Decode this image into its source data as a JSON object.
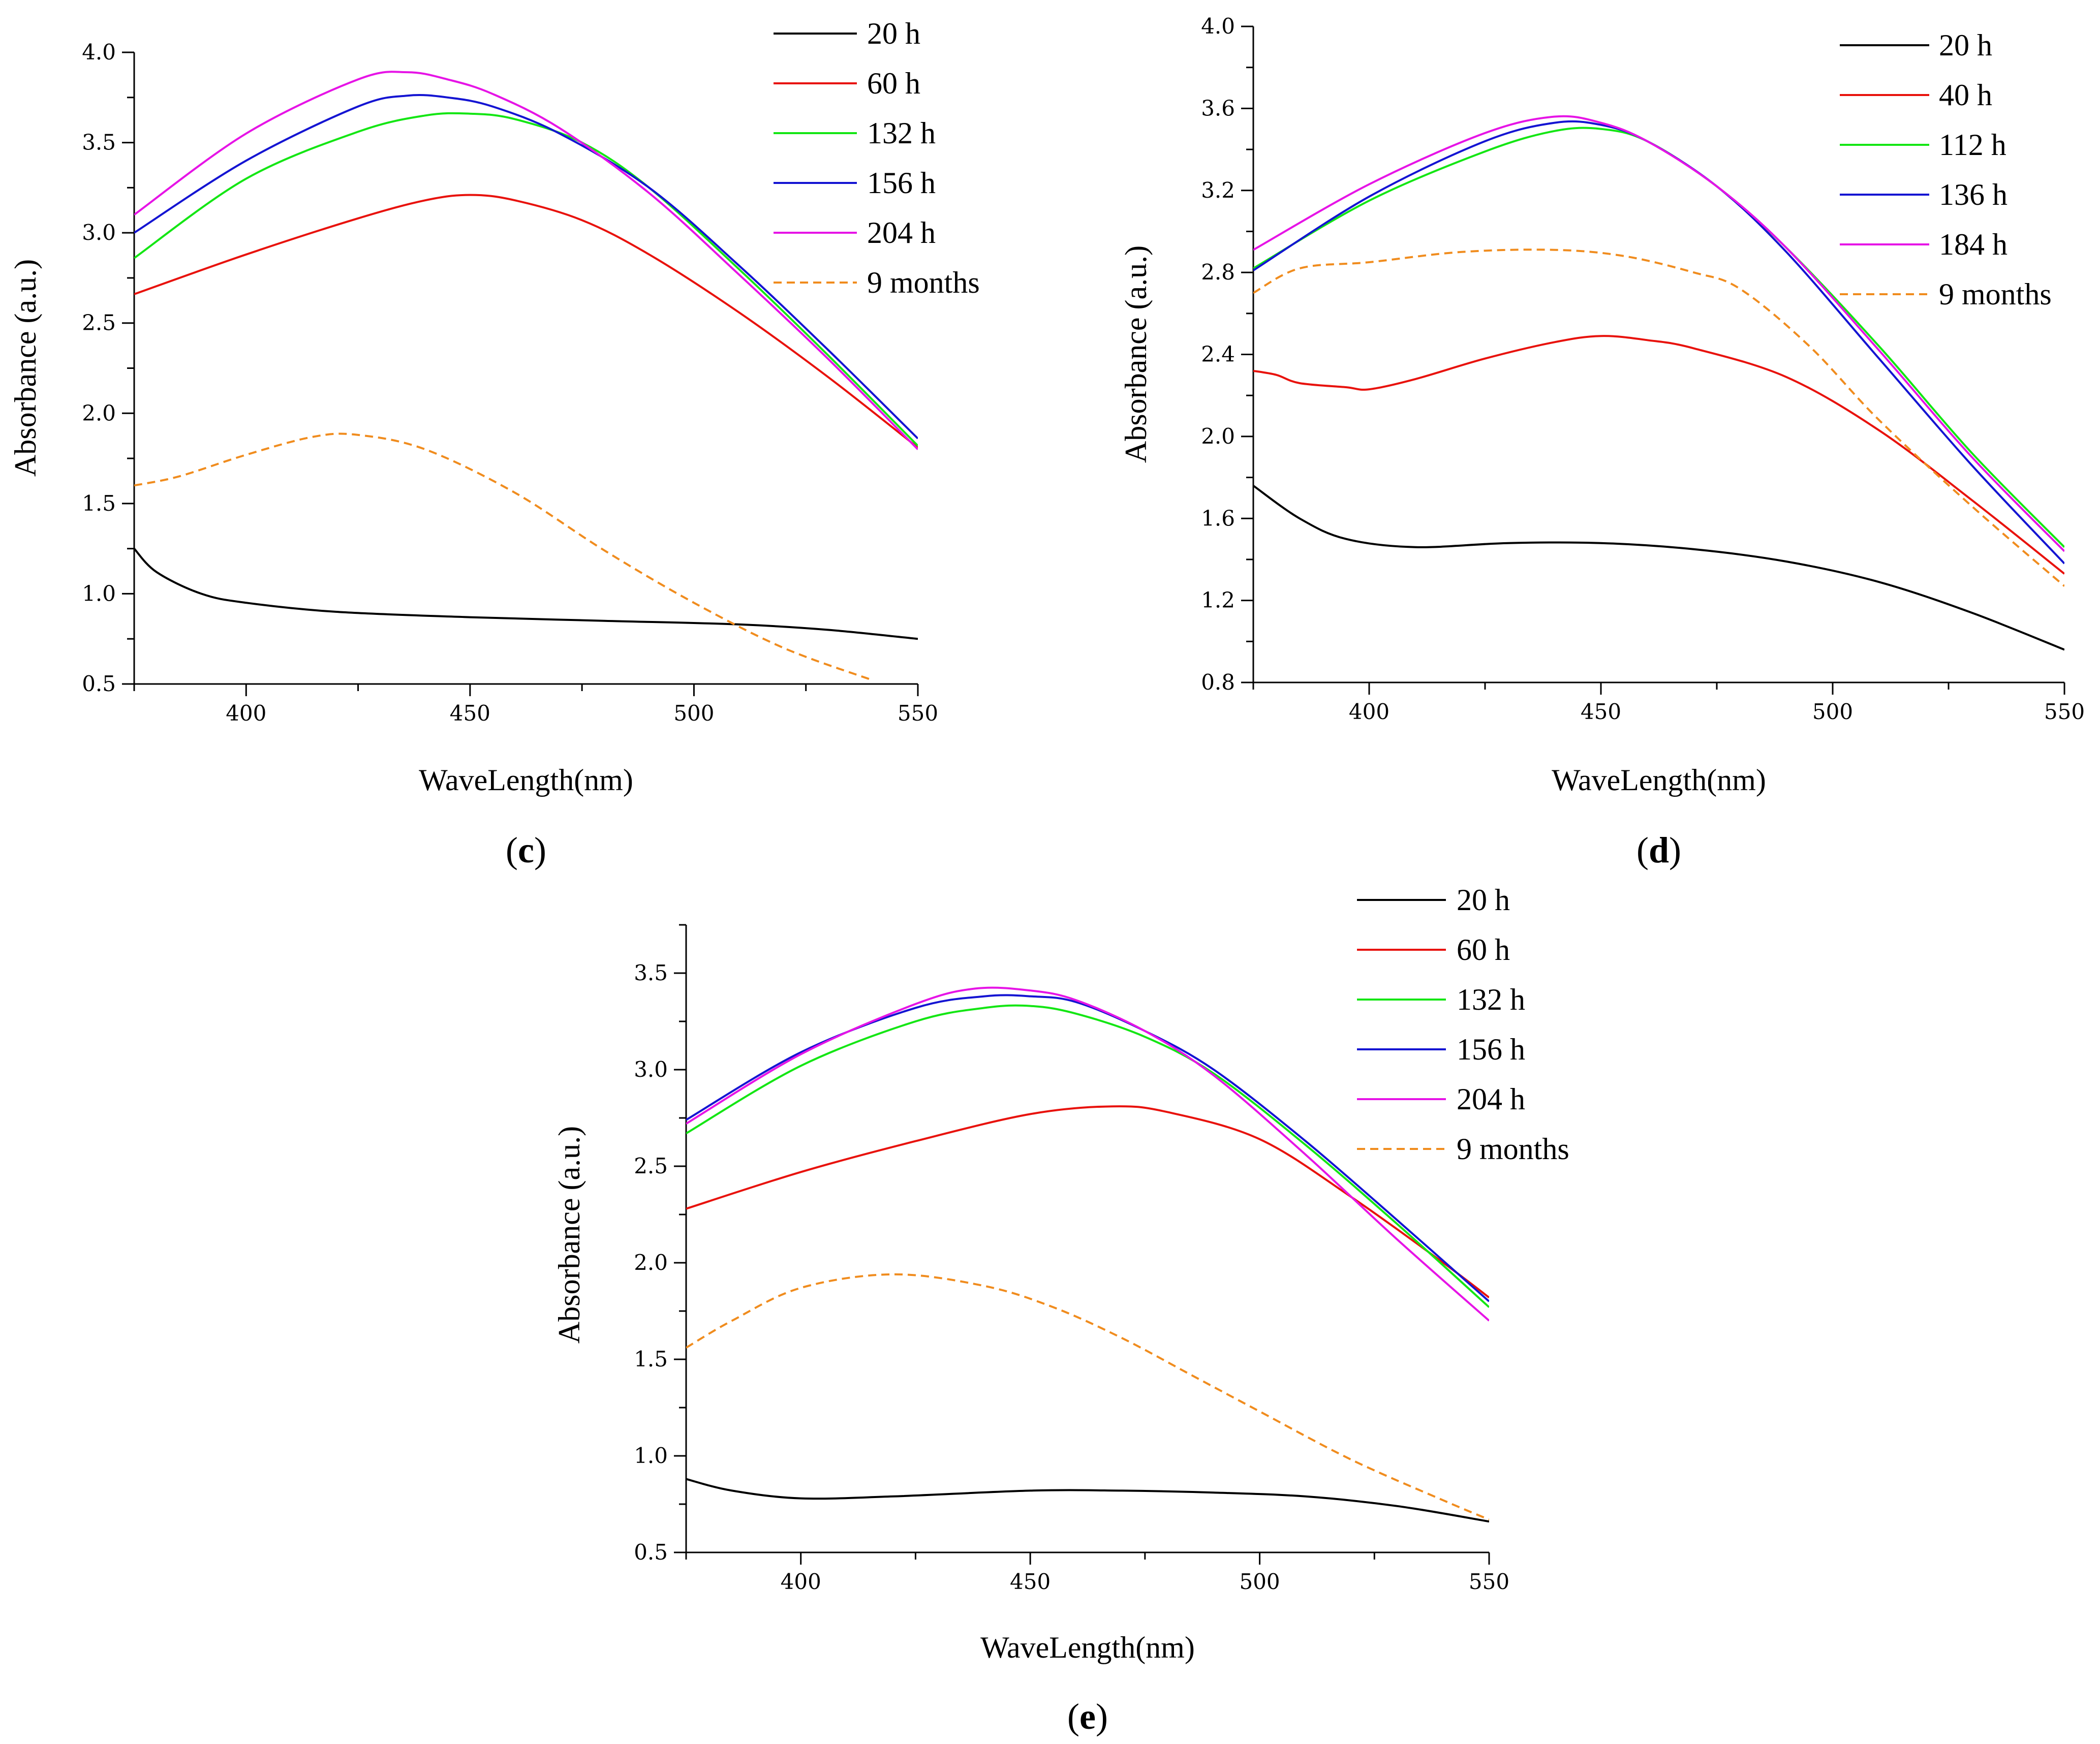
{
  "chart_data": [
    {
      "type": "line",
      "panel": "c",
      "caption_open": "(",
      "caption_letter": "c",
      "caption_close": ")",
      "xlabel": "WaveLength(nm)",
      "ylabel": "Absorbance (a.u.)",
      "xlim": [
        375,
        550
      ],
      "ylim": [
        0.5,
        4.0
      ],
      "xticks": [
        400,
        450,
        500,
        550
      ],
      "yticks": [
        0.5,
        1.0,
        1.5,
        2.0,
        2.5,
        3.0,
        3.5,
        4.0
      ],
      "ytick_labels": [
        "0.5",
        "1.0",
        "1.5",
        "2.0",
        "2.5",
        "3.0",
        "3.5",
        "4.0"
      ],
      "legend_position": "top-right",
      "series": [
        {
          "name": "20 h",
          "color": "#000000",
          "dash": "solid",
          "x": [
            375,
            380,
            390,
            400,
            420,
            450,
            480,
            510,
            530,
            550
          ],
          "y": [
            1.25,
            1.12,
            1.0,
            0.95,
            0.9,
            0.87,
            0.85,
            0.83,
            0.8,
            0.75
          ]
        },
        {
          "name": "60 h",
          "color": "#e8120c",
          "dash": "solid",
          "x": [
            375,
            400,
            425,
            440,
            450,
            460,
            475,
            490,
            510,
            530,
            550
          ],
          "y": [
            2.66,
            2.88,
            3.08,
            3.18,
            3.21,
            3.18,
            3.07,
            2.88,
            2.56,
            2.2,
            1.81
          ]
        },
        {
          "name": "132 h",
          "color": "#14e614",
          "dash": "solid",
          "x": [
            375,
            400,
            425,
            440,
            450,
            460,
            475,
            490,
            510,
            530,
            550
          ],
          "y": [
            2.86,
            3.3,
            3.56,
            3.65,
            3.66,
            3.63,
            3.5,
            3.25,
            2.8,
            2.32,
            1.82
          ]
        },
        {
          "name": "156 h",
          "color": "#1414d2",
          "dash": "solid",
          "x": [
            375,
            400,
            425,
            436,
            445,
            455,
            470,
            490,
            510,
            530,
            550
          ],
          "y": [
            3.0,
            3.4,
            3.7,
            3.76,
            3.75,
            3.7,
            3.55,
            3.25,
            2.82,
            2.35,
            1.86
          ]
        },
        {
          "name": "204 h",
          "color": "#e614e6",
          "dash": "solid",
          "x": [
            375,
            400,
            425,
            436,
            445,
            455,
            470,
            490,
            510,
            530,
            550
          ],
          "y": [
            3.1,
            3.55,
            3.85,
            3.89,
            3.85,
            3.77,
            3.58,
            3.22,
            2.77,
            2.3,
            1.8
          ]
        },
        {
          "name": "9 months",
          "color": "#f08c1e",
          "dash": "dashed",
          "x": [
            375,
            385,
            400,
            415,
            425,
            440,
            460,
            480,
            500,
            520,
            540
          ],
          "y": [
            1.6,
            1.65,
            1.77,
            1.87,
            1.88,
            1.8,
            1.56,
            1.24,
            0.95,
            0.7,
            0.52
          ]
        }
      ]
    },
    {
      "type": "line",
      "panel": "d",
      "caption_open": "(",
      "caption_letter": "d",
      "caption_close": ")",
      "xlabel": "WaveLength(nm)",
      "ylabel": "Absorbance (a.u.)",
      "xlim": [
        375,
        550
      ],
      "ylim": [
        0.8,
        4.0
      ],
      "xticks": [
        400,
        450,
        500,
        550
      ],
      "yticks": [
        0.8,
        1.2,
        1.6,
        2.0,
        2.4,
        2.8,
        3.2,
        3.6,
        4.0
      ],
      "ytick_labels": [
        "0.8",
        "1.2",
        "1.6",
        "2.0",
        "2.4",
        "2.8",
        "3.2",
        "3.6",
        "4.0"
      ],
      "legend_position": "top-right",
      "series": [
        {
          "name": "20 h",
          "color": "#000000",
          "dash": "solid",
          "x": [
            375,
            385,
            395,
            410,
            430,
            450,
            470,
            490,
            510,
            530,
            550
          ],
          "y": [
            1.76,
            1.6,
            1.5,
            1.46,
            1.48,
            1.48,
            1.45,
            1.39,
            1.29,
            1.14,
            0.96
          ]
        },
        {
          "name": "40 h",
          "color": "#e8120c",
          "dash": "solid",
          "x": [
            375,
            380,
            385,
            395,
            400,
            410,
            425,
            440,
            450,
            460,
            470,
            490,
            510,
            530,
            550
          ],
          "y": [
            2.32,
            2.3,
            2.26,
            2.24,
            2.23,
            2.28,
            2.38,
            2.46,
            2.49,
            2.47,
            2.43,
            2.29,
            2.03,
            1.69,
            1.33
          ]
        },
        {
          "name": "112 h",
          "color": "#14e614",
          "dash": "solid",
          "x": [
            375,
            400,
            425,
            440,
            450,
            460,
            475,
            490,
            510,
            530,
            550
          ],
          "y": [
            2.82,
            3.15,
            3.39,
            3.49,
            3.5,
            3.44,
            3.22,
            2.92,
            2.44,
            1.92,
            1.46
          ]
        },
        {
          "name": "136 h",
          "color": "#1414d2",
          "dash": "solid",
          "x": [
            375,
            400,
            425,
            440,
            450,
            460,
            475,
            490,
            510,
            530,
            550
          ],
          "y": [
            2.81,
            3.17,
            3.44,
            3.53,
            3.52,
            3.44,
            3.22,
            2.9,
            2.38,
            1.86,
            1.38
          ]
        },
        {
          "name": "184 h",
          "color": "#e614e6",
          "dash": "solid",
          "x": [
            375,
            400,
            425,
            440,
            450,
            460,
            475,
            490,
            510,
            530,
            550
          ],
          "y": [
            2.91,
            3.23,
            3.48,
            3.56,
            3.53,
            3.44,
            3.22,
            2.92,
            2.42,
            1.9,
            1.44
          ]
        },
        {
          "name": "9 months",
          "color": "#f08c1e",
          "dash": "dashed",
          "x": [
            375,
            385,
            400,
            420,
            440,
            455,
            470,
            480,
            495,
            510,
            530,
            550
          ],
          "y": [
            2.7,
            2.82,
            2.85,
            2.9,
            2.91,
            2.88,
            2.8,
            2.72,
            2.44,
            2.08,
            1.66,
            1.27
          ]
        }
      ]
    },
    {
      "type": "line",
      "panel": "e",
      "caption_open": "(",
      "caption_letter": "e",
      "caption_close": ")",
      "xlabel": "WaveLength(nm)",
      "ylabel": "Absorbance (a.u.)",
      "xlim": [
        375,
        550
      ],
      "ylim": [
        0.5,
        3.75
      ],
      "xticks": [
        400,
        450,
        500,
        550
      ],
      "yticks": [
        0.5,
        1.0,
        1.5,
        2.0,
        2.5,
        3.0,
        3.5
      ],
      "ytick_labels": [
        "0.5",
        "1.0",
        "1.5",
        "2.0",
        "2.5",
        "3.0",
        "3.5"
      ],
      "legend_position": "top-right",
      "series": [
        {
          "name": "20 h",
          "color": "#000000",
          "dash": "solid",
          "x": [
            375,
            385,
            400,
            420,
            450,
            470,
            490,
            510,
            530,
            550
          ],
          "y": [
            0.88,
            0.82,
            0.78,
            0.79,
            0.82,
            0.82,
            0.81,
            0.79,
            0.74,
            0.66
          ]
        },
        {
          "name": "60 h",
          "color": "#e8120c",
          "dash": "solid",
          "x": [
            375,
            400,
            425,
            450,
            468,
            480,
            500,
            520,
            540,
            550
          ],
          "y": [
            2.28,
            2.47,
            2.63,
            2.77,
            2.81,
            2.78,
            2.64,
            2.34,
            2.0,
            1.82
          ]
        },
        {
          "name": "132 h",
          "color": "#14e614",
          "dash": "solid",
          "x": [
            375,
            400,
            425,
            440,
            450,
            460,
            475,
            490,
            510,
            530,
            550
          ],
          "y": [
            2.67,
            3.02,
            3.25,
            3.32,
            3.33,
            3.29,
            3.17,
            2.98,
            2.61,
            2.2,
            1.77
          ]
        },
        {
          "name": "156 h",
          "color": "#1414d2",
          "dash": "solid",
          "x": [
            375,
            400,
            425,
            440,
            450,
            460,
            475,
            490,
            510,
            530,
            550
          ],
          "y": [
            2.74,
            3.09,
            3.32,
            3.38,
            3.38,
            3.35,
            3.2,
            3.0,
            2.63,
            2.22,
            1.8
          ]
        },
        {
          "name": "204 h",
          "color": "#e614e6",
          "dash": "solid",
          "x": [
            375,
            400,
            425,
            438,
            450,
            460,
            475,
            490,
            510,
            530,
            550
          ],
          "y": [
            2.72,
            3.08,
            3.34,
            3.42,
            3.41,
            3.36,
            3.2,
            2.97,
            2.56,
            2.12,
            1.7
          ]
        },
        {
          "name": "9 months",
          "color": "#f08c1e",
          "dash": "dashed",
          "x": [
            375,
            385,
            400,
            420,
            440,
            455,
            470,
            485,
            500,
            520,
            540,
            550
          ],
          "y": [
            1.56,
            1.7,
            1.87,
            1.94,
            1.88,
            1.77,
            1.61,
            1.42,
            1.23,
            0.98,
            0.77,
            0.67
          ]
        }
      ]
    }
  ]
}
